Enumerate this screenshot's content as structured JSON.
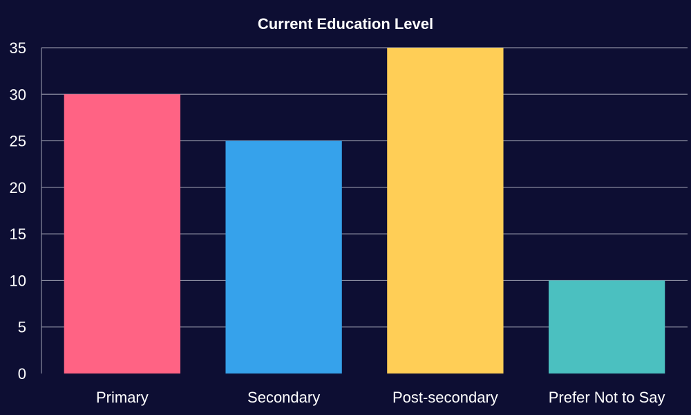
{
  "chart_data": {
    "type": "bar",
    "title": "Current Education Level",
    "xlabel": "",
    "ylabel": "",
    "categories": [
      "Primary",
      "Secondary",
      "Post-secondary",
      "Prefer Not to Say"
    ],
    "values": [
      30,
      25,
      35,
      10
    ],
    "colors": [
      "#ff6384",
      "#36a2eb",
      "#ffce56",
      "#4bc0c0"
    ],
    "ylim": [
      0,
      35
    ],
    "yticks": [
      0,
      5,
      10,
      15,
      20,
      25,
      30,
      35
    ],
    "grid": true,
    "legend": "none"
  },
  "theme": {
    "background": "#0d0e33",
    "text": "#ffffff",
    "grid": "#8a8ca0"
  }
}
